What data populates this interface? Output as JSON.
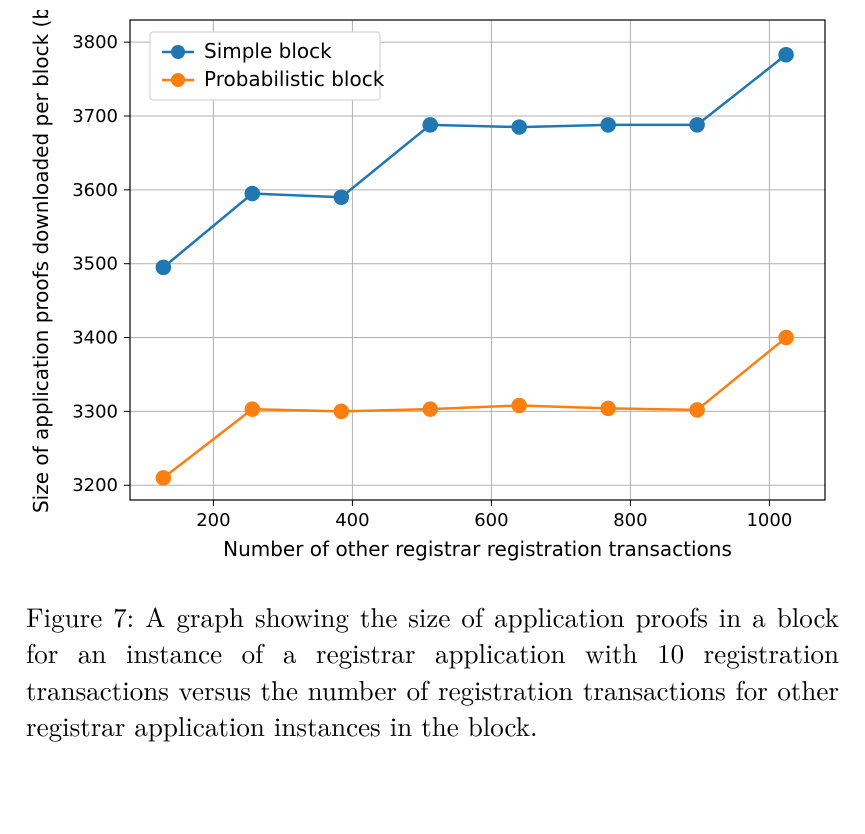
{
  "chart": {
    "type": "line",
    "background_color": "#ffffff",
    "grid_color": "#b0b0b0",
    "border_color": "#000000",
    "xlabel": "Number of other registrar registration transactions",
    "ylabel": "Size of application proofs downloaded per block (b",
    "label_fontsize": 20,
    "tick_fontsize": 18,
    "xlim": [
      80,
      1080
    ],
    "ylim": [
      3180,
      3830
    ],
    "xticks": [
      200,
      400,
      600,
      800,
      1000
    ],
    "yticks": [
      3200,
      3300,
      3400,
      3500,
      3600,
      3700,
      3800
    ],
    "xtick_labels": [
      "200",
      "400",
      "600",
      "800",
      "1000"
    ],
    "ytick_labels": [
      "3200",
      "3300",
      "3400",
      "3500",
      "3600",
      "3700",
      "3800"
    ],
    "marker_radius": 7,
    "line_width": 2.5,
    "series": [
      {
        "name": "Simple block",
        "color": "#1f77b4",
        "x": [
          128,
          256,
          384,
          512,
          640,
          768,
          896,
          1024
        ],
        "y": [
          3495,
          3595,
          3590,
          3688,
          3685,
          3688,
          3688,
          3783
        ]
      },
      {
        "name": "Probabilistic block",
        "color": "#ff7f0e",
        "x": [
          128,
          256,
          384,
          512,
          640,
          768,
          896,
          1024
        ],
        "y": [
          3210,
          3303,
          3300,
          3303,
          3308,
          3304,
          3302,
          3400
        ]
      }
    ],
    "legend": {
      "position": "upper-left",
      "items": [
        "Simple block",
        "Probabilistic block"
      ]
    }
  },
  "caption": {
    "label": "Figure 7:",
    "text": "A graph showing the size of application proofs in a block for an instance of a registrar application with 10 registration transactions versus the number of registration transactions for other registrar application instances in the block."
  }
}
